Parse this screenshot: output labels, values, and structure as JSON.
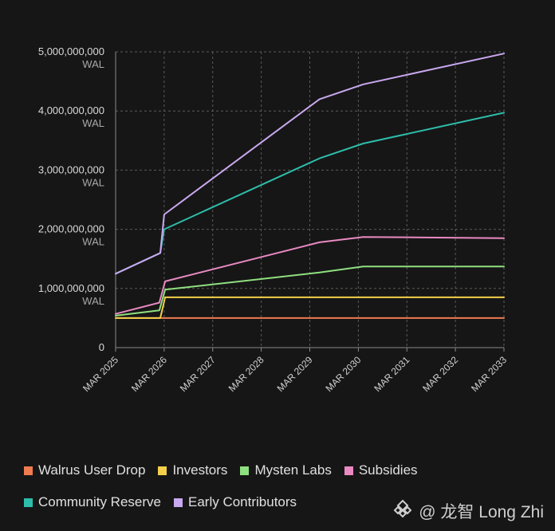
{
  "chart_data": {
    "type": "line",
    "y_ticks": [
      {
        "value": 5000000000,
        "label": "5,000,000,000",
        "unit": "WAL"
      },
      {
        "value": 4000000000,
        "label": "4,000,000,000",
        "unit": "WAL"
      },
      {
        "value": 3000000000,
        "label": "3,000,000,000",
        "unit": "WAL"
      },
      {
        "value": 2000000000,
        "label": "2,000,000,000",
        "unit": "WAL"
      },
      {
        "value": 1000000000,
        "label": "1,000,000,000",
        "unit": "WAL"
      },
      {
        "value": 0,
        "label": "0",
        "unit": ""
      }
    ],
    "x_ticks": [
      {
        "value": 2025,
        "label": "MAR 2025"
      },
      {
        "value": 2026,
        "label": "MAR 2026"
      },
      {
        "value": 2027,
        "label": "MAR 2027"
      },
      {
        "value": 2028,
        "label": "MAR 2028"
      },
      {
        "value": 2029,
        "label": "MAR 2029"
      },
      {
        "value": 2030,
        "label": "MAR 2030"
      },
      {
        "value": 2031,
        "label": "MAR 2031"
      },
      {
        "value": 2032,
        "label": "MAR 2032"
      },
      {
        "value": 2033,
        "label": "MAR 2033"
      }
    ],
    "xlim": [
      2025,
      2033
    ],
    "ylim": [
      0,
      5000000000
    ],
    "grid": true,
    "legend_position": "bottom",
    "series": [
      {
        "name": "Walrus User Drop",
        "color": "#f07b4f",
        "points": [
          [
            2025,
            500000000
          ],
          [
            2033,
            500000000
          ]
        ]
      },
      {
        "name": "Investors",
        "color": "#f3cf4a",
        "points": [
          [
            2025,
            500000000
          ],
          [
            2025.92,
            500000000
          ],
          [
            2026.02,
            850000000
          ],
          [
            2033,
            850000000
          ]
        ]
      },
      {
        "name": "Mysten Labs",
        "color": "#8fe07f",
        "points": [
          [
            2025,
            540000000
          ],
          [
            2025.9,
            630000000
          ],
          [
            2026.02,
            980000000
          ],
          [
            2029.2,
            1270000000
          ],
          [
            2030.1,
            1370000000
          ],
          [
            2033,
            1370000000
          ]
        ]
      },
      {
        "name": "Subsidies",
        "color": "#e98ac2",
        "points": [
          [
            2025,
            570000000
          ],
          [
            2025.9,
            760000000
          ],
          [
            2026.02,
            1120000000
          ],
          [
            2029.2,
            1780000000
          ],
          [
            2030.1,
            1870000000
          ],
          [
            2033,
            1850000000
          ]
        ]
      },
      {
        "name": "Community Reserve",
        "color": "#2ebdaa",
        "points": [
          [
            2025,
            1250000000
          ],
          [
            2025.92,
            1600000000
          ],
          [
            2026.0,
            2000000000
          ],
          [
            2029.2,
            3200000000
          ],
          [
            2030.1,
            3450000000
          ],
          [
            2033,
            3970000000
          ]
        ]
      },
      {
        "name": "Early Contributors",
        "color": "#c9a8f0",
        "points": [
          [
            2025,
            1250000000
          ],
          [
            2025.92,
            1600000000
          ],
          [
            2026.0,
            2250000000
          ],
          [
            2029.2,
            4200000000
          ],
          [
            2030.1,
            4450000000
          ],
          [
            2033,
            4970000000
          ]
        ]
      }
    ]
  },
  "legend": [
    {
      "label": "Walrus User Drop",
      "color": "#f07b4f"
    },
    {
      "label": "Investors",
      "color": "#f3cf4a"
    },
    {
      "label": "Mysten Labs",
      "color": "#8fe07f"
    },
    {
      "label": "Subsidies",
      "color": "#e98ac2"
    },
    {
      "label": "Community Reserve",
      "color": "#2ebdaa"
    },
    {
      "label": "Early Contributors",
      "color": "#c9a8f0"
    }
  ],
  "watermark": {
    "text": "@ 龙智 Long Zhi",
    "icon": "binance-square-icon"
  }
}
